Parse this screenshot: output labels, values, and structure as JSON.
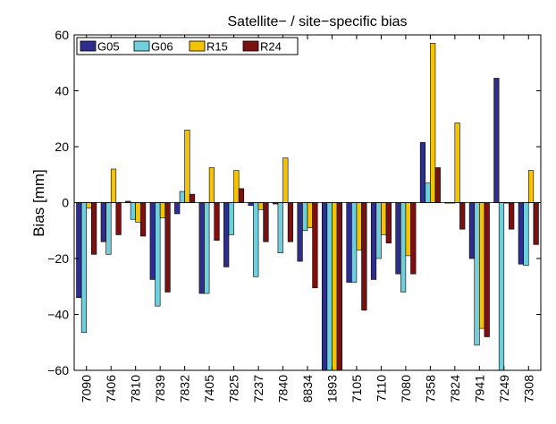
{
  "chart_data": {
    "type": "bar",
    "title": "Satellite− / site−specific bias",
    "xlabel": "",
    "ylabel": "Bias [mm]",
    "ylim": [
      -60,
      60
    ],
    "yticks": [
      -60,
      -40,
      -20,
      0,
      20,
      40,
      60
    ],
    "ytick_labels": [
      "−60",
      "−40",
      "−20",
      "0",
      "20",
      "40",
      "60"
    ],
    "grid": false,
    "legend_position": "top-left",
    "categories": [
      "7090",
      "7406",
      "7810",
      "7839",
      "7832",
      "7405",
      "7825",
      "7237",
      "7840",
      "8834",
      "1893",
      "7105",
      "7110",
      "7080",
      "7358",
      "7824",
      "7941",
      "7249",
      "7308"
    ],
    "series": [
      {
        "name": "G05",
        "color": "#2e2e8f",
        "values": [
          -34,
          -14,
          0.5,
          -27.5,
          -4,
          -32.5,
          -23,
          -1,
          -0.5,
          -21,
          -65,
          -28.5,
          -27.5,
          -25.5,
          21.5,
          0,
          -20,
          44.5,
          -22
        ]
      },
      {
        "name": "G06",
        "color": "#6fcfdc",
        "values": [
          -46.5,
          -18.5,
          -6,
          -37,
          4,
          -32.5,
          -11.5,
          -26.5,
          -18,
          -10,
          -65,
          -28.5,
          -20,
          -32,
          7,
          0,
          -51,
          -65,
          -22.5
        ]
      },
      {
        "name": "R15",
        "color": "#f5c400",
        "values": [
          -2,
          12,
          -7,
          -5.5,
          26,
          12.5,
          11.5,
          -2.5,
          16,
          -9,
          -65,
          -17,
          -11.5,
          -19,
          57,
          28.5,
          -45,
          0,
          11.5
        ]
      },
      {
        "name": "R24",
        "color": "#7a1010",
        "values": [
          -18.5,
          -11.5,
          -12,
          -32,
          3,
          -13.5,
          5,
          -14,
          -14,
          -30.5,
          -65,
          -38.5,
          -14.5,
          -25.5,
          12.5,
          -9.5,
          -48,
          -9.5,
          -15
        ]
      }
    ]
  }
}
